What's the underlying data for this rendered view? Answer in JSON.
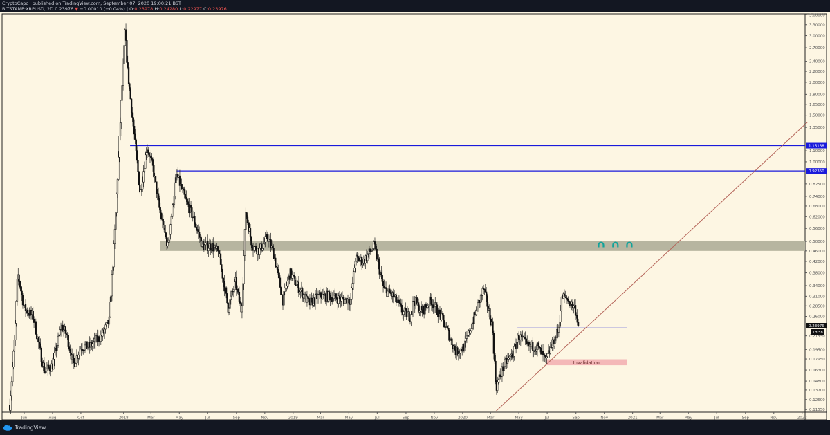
{
  "header": {
    "published": "CryptoCapo_  published on TradingView.com, September 07, 2020 19:00:21 BST",
    "symbol": "BITSTAMP:XRPUSD, 2D",
    "last": "0.23976",
    "change_arrow": "▼",
    "change": "−0.00010 (−0.04%)",
    "open_label": "O:",
    "open": "0.23978",
    "high_label": "H:",
    "high": "0.24280",
    "low_label": "L:",
    "low": "0.22977",
    "close_label": "C:",
    "close": "0.23976"
  },
  "footer": {
    "brand": "TradingView",
    "logo_icon": "tradingview-cloud-icon"
  },
  "colors": {
    "background": "#fdf6e3",
    "level_line": "#1a1adb",
    "zone": "#b7b5a0",
    "trendline": "#b5655a",
    "invalidation": "#f4b8b8",
    "marker": "#13a39a"
  },
  "chart_data": {
    "type": "candlestick",
    "y_scale": "log",
    "ylim": [
      0.1155,
      3.6
    ],
    "y_ticks": [
      "3.60000",
      "3.30000",
      "3.00000",
      "2.70000",
      "2.40000",
      "2.20000",
      "2.00000",
      "1.80000",
      "1.65000",
      "1.50000",
      "1.35000",
      "1.10000",
      "1.00000",
      "0.82500",
      "0.74000",
      "0.68000",
      "0.62000",
      "0.56000",
      "0.50000",
      "0.46000",
      "0.42000",
      "0.38000",
      "0.34000",
      "0.31000",
      "0.28500",
      "0.26000",
      "0.21950",
      "0.19500",
      "0.17950",
      "0.16300",
      "0.14800",
      "0.13700",
      "0.12600",
      "0.11550"
    ],
    "x_ticks": [
      {
        "label": "Jun",
        "date": "2017-06-01"
      },
      {
        "label": "Aug",
        "date": "2017-08-01"
      },
      {
        "label": "Oct",
        "date": "2017-10-01"
      },
      {
        "label": "2018",
        "date": "2018-01-01"
      },
      {
        "label": "Mar",
        "date": "2018-03-01"
      },
      {
        "label": "May",
        "date": "2018-05-01"
      },
      {
        "label": "Jul",
        "date": "2018-07-01"
      },
      {
        "label": "Sep",
        "date": "2018-09-01"
      },
      {
        "label": "Nov",
        "date": "2018-11-01"
      },
      {
        "label": "2019",
        "date": "2019-01-01"
      },
      {
        "label": "Mar",
        "date": "2019-03-01"
      },
      {
        "label": "May",
        "date": "2019-05-01"
      },
      {
        "label": "Jul",
        "date": "2019-07-01"
      },
      {
        "label": "Sep",
        "date": "2019-09-01"
      },
      {
        "label": "Nov",
        "date": "2019-11-01"
      },
      {
        "label": "2020",
        "date": "2020-01-01"
      },
      {
        "label": "Mar",
        "date": "2020-03-01"
      },
      {
        "label": "May",
        "date": "2020-05-01"
      },
      {
        "label": "Jul",
        "date": "2020-07-01"
      },
      {
        "label": "Sep",
        "date": "2020-09-01"
      },
      {
        "label": "Nov",
        "date": "2020-11-01"
      },
      {
        "label": "2021",
        "date": "2021-01-01"
      },
      {
        "label": "Mar",
        "date": "2021-03-01"
      },
      {
        "label": "May",
        "date": "2021-05-01"
      },
      {
        "label": "Jul",
        "date": "2021-07-01"
      },
      {
        "label": "Sep",
        "date": "2021-09-01"
      },
      {
        "label": "Nov",
        "date": "2021-11-01"
      },
      {
        "label": "2022",
        "date": "2022-01-01"
      }
    ],
    "price_path": [
      [
        "2017-05-01",
        0.12
      ],
      [
        "2017-05-12",
        0.22
      ],
      [
        "2017-05-18",
        0.38
      ],
      [
        "2017-06-01",
        0.28
      ],
      [
        "2017-06-20",
        0.26
      ],
      [
        "2017-07-15",
        0.16
      ],
      [
        "2017-08-01",
        0.17
      ],
      [
        "2017-08-20",
        0.24
      ],
      [
        "2017-09-01",
        0.22
      ],
      [
        "2017-09-15",
        0.17
      ],
      [
        "2017-10-01",
        0.2
      ],
      [
        "2017-10-20",
        0.2
      ],
      [
        "2017-11-15",
        0.22
      ],
      [
        "2017-12-01",
        0.25
      ],
      [
        "2017-12-12",
        0.5
      ],
      [
        "2017-12-20",
        0.95
      ],
      [
        "2017-12-28",
        1.8
      ],
      [
        "2018-01-04",
        3.1
      ],
      [
        "2018-01-10",
        2.2
      ],
      [
        "2018-01-18",
        1.6
      ],
      [
        "2018-02-06",
        0.75
      ],
      [
        "2018-02-20",
        1.15
      ],
      [
        "2018-03-05",
        0.95
      ],
      [
        "2018-03-20",
        0.65
      ],
      [
        "2018-04-06",
        0.48
      ],
      [
        "2018-04-25",
        0.9
      ],
      [
        "2018-05-10",
        0.75
      ],
      [
        "2018-05-30",
        0.62
      ],
      [
        "2018-06-20",
        0.48
      ],
      [
        "2018-07-10",
        0.48
      ],
      [
        "2018-07-25",
        0.45
      ],
      [
        "2018-08-14",
        0.28
      ],
      [
        "2018-08-30",
        0.35
      ],
      [
        "2018-09-12",
        0.27
      ],
      [
        "2018-09-21",
        0.65
      ],
      [
        "2018-10-05",
        0.48
      ],
      [
        "2018-10-20",
        0.46
      ],
      [
        "2018-11-07",
        0.52
      ],
      [
        "2018-11-20",
        0.45
      ],
      [
        "2018-12-10",
        0.3
      ],
      [
        "2018-12-25",
        0.38
      ],
      [
        "2019-01-10",
        0.34
      ],
      [
        "2019-02-05",
        0.29
      ],
      [
        "2019-02-25",
        0.31
      ],
      [
        "2019-03-20",
        0.31
      ],
      [
        "2019-04-20",
        0.3
      ],
      [
        "2019-05-05",
        0.3
      ],
      [
        "2019-05-15",
        0.43
      ],
      [
        "2019-06-01",
        0.42
      ],
      [
        "2019-06-25",
        0.48
      ],
      [
        "2019-07-15",
        0.33
      ],
      [
        "2019-08-05",
        0.31
      ],
      [
        "2019-08-25",
        0.27
      ],
      [
        "2019-09-10",
        0.26
      ],
      [
        "2019-09-18",
        0.3
      ],
      [
        "2019-10-05",
        0.27
      ],
      [
        "2019-10-25",
        0.3
      ],
      [
        "2019-11-20",
        0.25
      ],
      [
        "2019-12-18",
        0.19
      ],
      [
        "2020-01-05",
        0.2
      ],
      [
        "2020-01-20",
        0.24
      ],
      [
        "2020-02-15",
        0.33
      ],
      [
        "2020-03-05",
        0.24
      ],
      [
        "2020-03-13",
        0.14
      ],
      [
        "2020-03-30",
        0.17
      ],
      [
        "2020-04-20",
        0.19
      ],
      [
        "2020-05-01",
        0.22
      ],
      [
        "2020-05-20",
        0.2
      ],
      [
        "2020-06-10",
        0.2
      ],
      [
        "2020-06-28",
        0.175
      ],
      [
        "2020-07-10",
        0.2
      ],
      [
        "2020-07-25",
        0.23
      ],
      [
        "2020-08-02",
        0.31
      ],
      [
        "2020-08-15",
        0.3
      ],
      [
        "2020-08-30",
        0.28
      ],
      [
        "2020-09-07",
        0.23976
      ]
    ],
    "levels": [
      {
        "price": 1.15138,
        "label": "1.15138",
        "from": "2018-01-15"
      },
      {
        "price": 0.9235,
        "label": "0.92350",
        "from": "2018-04-25"
      }
    ],
    "zone": {
      "low": 0.46,
      "high": 0.5,
      "from": "2018-03-20"
    },
    "support_line": {
      "price": 0.235,
      "from": "2020-04-28",
      "to": "2020-12-20"
    },
    "invalidation": {
      "label": "Invalidation",
      "low": 0.17,
      "high": 0.179,
      "from": "2020-06-28",
      "to": "2020-12-20"
    },
    "trendline": {
      "from": [
        "2020-03-13",
        0.114
      ],
      "to": [
        "2022-01-12",
        1.41
      ]
    },
    "last_price_label": "0.23976",
    "countdown_label": "1d 5h",
    "markers": {
      "icon": "magnet-arch-icon",
      "dates": [
        "2020-10-25",
        "2020-11-25",
        "2020-12-25"
      ],
      "price": 0.485
    }
  }
}
